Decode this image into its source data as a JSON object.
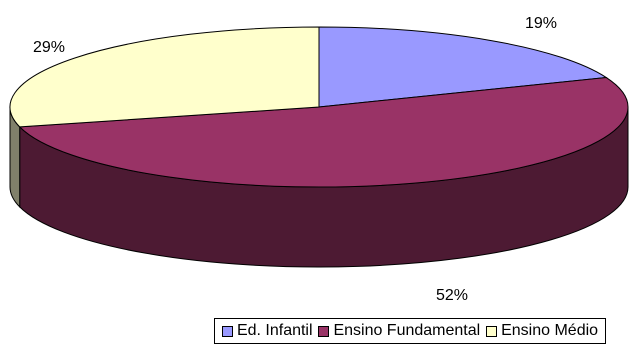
{
  "chart_data": {
    "type": "pie",
    "labels": [
      "Ed. Infantil",
      "Ensino Fundamental",
      "Ensino Médio"
    ],
    "values": [
      19,
      52,
      29
    ],
    "data_labels": [
      "19%",
      "52%",
      "29%"
    ],
    "colors": [
      "#9999ff",
      "#993366",
      "#ffffcc"
    ],
    "side_colors": [
      "#4d4d80",
      "#4d1a33",
      "#80806a"
    ],
    "legend_position": "bottom",
    "three_d": true
  }
}
